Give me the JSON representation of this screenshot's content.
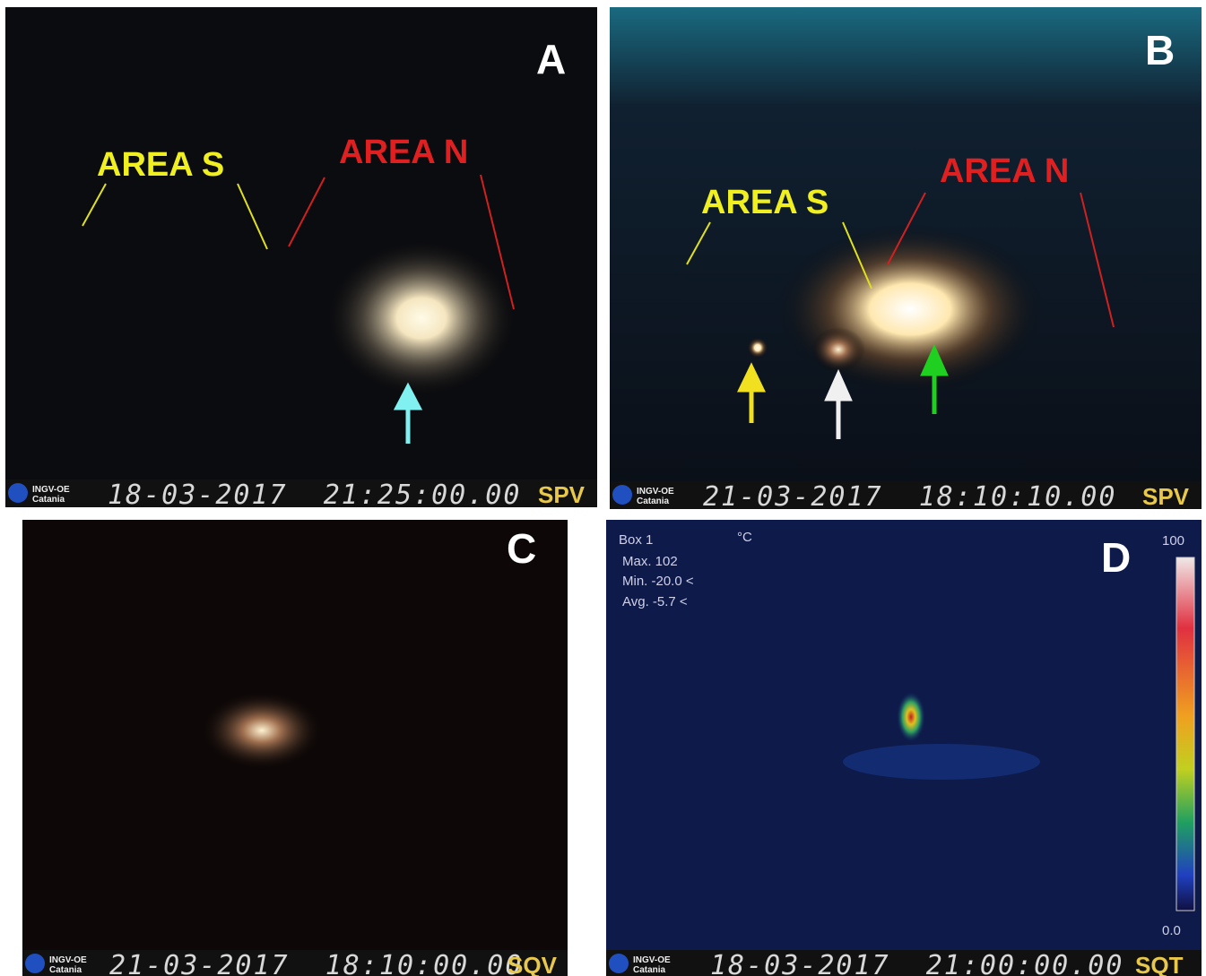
{
  "panels": [
    {
      "label": "A",
      "annotations": [
        "AREA S",
        "AREA N"
      ],
      "footer": {
        "logo": "INGV-OE",
        "logo_sub": "Catania",
        "timestamp": "18-03-2017  21:25:00.00",
        "camera": "SPV"
      }
    },
    {
      "label": "B",
      "annotations": [
        "AREA S",
        "AREA N"
      ],
      "footer": {
        "logo": "INGV-OE",
        "logo_sub": "Catania",
        "timestamp": "21-03-2017  18:10:10.00",
        "camera": "SPV"
      }
    },
    {
      "label": "C",
      "footer": {
        "logo": "INGV-OE",
        "logo_sub": "Catania",
        "timestamp": "21-03-2017  18:10:00.00",
        "camera": "SQV"
      }
    },
    {
      "label": "D",
      "footer": {
        "logo": "INGV-OE",
        "logo_sub": "Catania",
        "timestamp": "18-03-2017  21:00:00.00",
        "camera": "SQT"
      },
      "overlay": {
        "box": "Box 1",
        "unit": "°C",
        "max": "Max. 102",
        "min": "Min. -20.0 <",
        "avg": "Avg. -5.7 <",
        "scale_top": "100",
        "scale_bottom": "0.0"
      }
    }
  ]
}
